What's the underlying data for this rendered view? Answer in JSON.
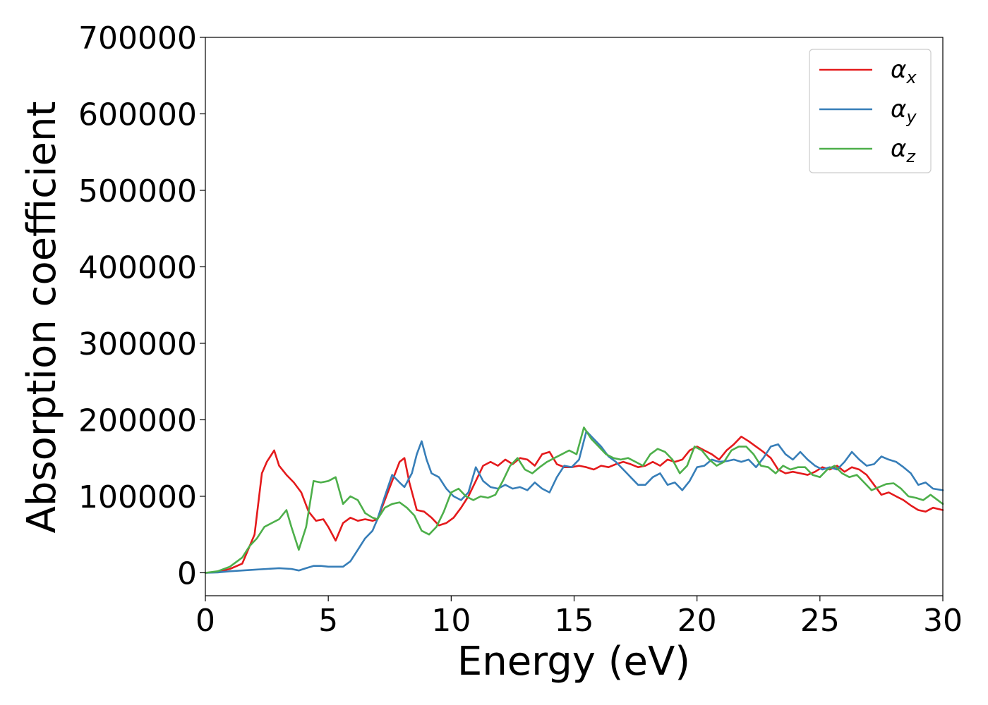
{
  "chart_data": {
    "type": "line",
    "title": "",
    "xlabel": "Energy (eV)",
    "ylabel": "Absorption coefficient",
    "xlim": [
      0,
      30
    ],
    "ylim": [
      -30000,
      700000
    ],
    "xticks": [
      0,
      5,
      10,
      15,
      20,
      25,
      30
    ],
    "xtick_labels": [
      "0",
      "5",
      "10",
      "15",
      "20",
      "25",
      "30"
    ],
    "yticks": [
      0,
      100000,
      200000,
      300000,
      400000,
      500000,
      600000,
      700000
    ],
    "ytick_labels": [
      "0",
      "100000",
      "200000",
      "300000",
      "400000",
      "500000",
      "600000",
      "700000"
    ],
    "grid": false,
    "legend_position": "top-right",
    "series": [
      {
        "name": "α_x",
        "name_base": "α",
        "name_sub": "x",
        "color": "#e41a1c",
        "x": [
          0,
          0.5,
          1,
          1.5,
          2,
          2.3,
          2.5,
          2.8,
          3,
          3.3,
          3.6,
          3.9,
          4.2,
          4.5,
          4.8,
          5,
          5.3,
          5.6,
          5.9,
          6.2,
          6.5,
          6.8,
          7,
          7.3,
          7.6,
          7.9,
          8.1,
          8.3,
          8.6,
          8.9,
          9.2,
          9.5,
          9.8,
          10.1,
          10.4,
          10.7,
          11,
          11.3,
          11.6,
          11.9,
          12.2,
          12.5,
          12.8,
          13.1,
          13.4,
          13.7,
          14,
          14.3,
          14.6,
          14.9,
          15.2,
          15.5,
          15.8,
          16.1,
          16.4,
          16.7,
          17,
          17.3,
          17.6,
          17.9,
          18.2,
          18.5,
          18.8,
          19.1,
          19.4,
          19.7,
          20,
          20.3,
          20.6,
          20.9,
          21.2,
          21.5,
          21.8,
          22.1,
          22.4,
          22.7,
          23,
          23.3,
          23.6,
          23.9,
          24.2,
          24.5,
          24.8,
          25.1,
          25.4,
          25.7,
          26,
          26.3,
          26.6,
          26.9,
          27.2,
          27.5,
          27.8,
          28.1,
          28.4,
          28.7,
          29,
          29.3,
          29.6,
          30
        ],
        "y": [
          0,
          1000,
          5000,
          12000,
          50000,
          130000,
          145000,
          160000,
          140000,
          128000,
          118000,
          105000,
          80000,
          68000,
          70000,
          60000,
          42000,
          65000,
          72000,
          68000,
          70000,
          68000,
          70000,
          95000,
          120000,
          145000,
          150000,
          118000,
          82000,
          80000,
          72000,
          62000,
          65000,
          72000,
          85000,
          100000,
          120000,
          140000,
          145000,
          140000,
          148000,
          142000,
          150000,
          148000,
          140000,
          155000,
          158000,
          142000,
          138000,
          138000,
          140000,
          138000,
          135000,
          140000,
          138000,
          142000,
          145000,
          142000,
          138000,
          140000,
          145000,
          140000,
          148000,
          145000,
          148000,
          160000,
          165000,
          160000,
          155000,
          148000,
          160000,
          168000,
          178000,
          172000,
          165000,
          158000,
          150000,
          135000,
          130000,
          132000,
          130000,
          128000,
          132000,
          138000,
          135000,
          140000,
          132000,
          138000,
          135000,
          128000,
          115000,
          102000,
          105000,
          100000,
          95000,
          88000,
          82000,
          80000,
          85000,
          82000
        ]
      },
      {
        "name": "α_y",
        "name_base": "α",
        "name_sub": "y",
        "color": "#377eb8",
        "x": [
          0,
          0.5,
          1,
          1.5,
          2,
          2.5,
          3,
          3.5,
          3.8,
          4.1,
          4.4,
          4.7,
          5,
          5.3,
          5.6,
          5.9,
          6.2,
          6.5,
          6.8,
          7,
          7.3,
          7.6,
          7.9,
          8.1,
          8.4,
          8.6,
          8.8,
          9,
          9.2,
          9.5,
          9.8,
          10.1,
          10.4,
          10.7,
          11,
          11.3,
          11.6,
          11.9,
          12.2,
          12.5,
          12.8,
          13.1,
          13.4,
          13.7,
          14,
          14.3,
          14.6,
          14.9,
          15.2,
          15.5,
          15.8,
          16.1,
          16.4,
          16.7,
          17,
          17.3,
          17.6,
          17.9,
          18.2,
          18.5,
          18.8,
          19.1,
          19.4,
          19.7,
          20,
          20.3,
          20.6,
          20.9,
          21.2,
          21.5,
          21.8,
          22.1,
          22.4,
          22.7,
          23,
          23.3,
          23.6,
          23.9,
          24.2,
          24.5,
          24.8,
          25.1,
          25.4,
          25.7,
          26,
          26.3,
          26.6,
          26.9,
          27.2,
          27.5,
          27.8,
          28.1,
          28.4,
          28.7,
          29,
          29.3,
          29.6,
          30
        ],
        "y": [
          0,
          500,
          2000,
          3000,
          4000,
          5000,
          6000,
          5000,
          3000,
          6000,
          9000,
          9000,
          8000,
          8000,
          8000,
          15000,
          30000,
          45000,
          55000,
          70000,
          100000,
          128000,
          118000,
          112000,
          130000,
          155000,
          172000,
          148000,
          130000,
          125000,
          110000,
          100000,
          95000,
          105000,
          138000,
          120000,
          112000,
          110000,
          115000,
          110000,
          112000,
          108000,
          118000,
          110000,
          105000,
          125000,
          140000,
          138000,
          148000,
          185000,
          175000,
          165000,
          152000,
          145000,
          135000,
          125000,
          115000,
          115000,
          125000,
          130000,
          115000,
          118000,
          108000,
          120000,
          138000,
          140000,
          148000,
          145000,
          146000,
          148000,
          145000,
          148000,
          138000,
          150000,
          165000,
          168000,
          155000,
          148000,
          158000,
          148000,
          140000,
          135000,
          138000,
          135000,
          145000,
          158000,
          148000,
          140000,
          142000,
          152000,
          148000,
          145000,
          138000,
          130000,
          115000,
          118000,
          110000,
          108000
        ]
      },
      {
        "name": "α_z",
        "name_base": "α",
        "name_sub": "z",
        "color": "#4daf4a",
        "x": [
          0,
          0.5,
          1,
          1.5,
          1.8,
          2.1,
          2.4,
          2.7,
          3,
          3.3,
          3.5,
          3.8,
          4.1,
          4.4,
          4.7,
          5,
          5.3,
          5.6,
          5.9,
          6.2,
          6.5,
          6.8,
          7,
          7.3,
          7.6,
          7.9,
          8.2,
          8.5,
          8.8,
          9.1,
          9.4,
          9.7,
          10,
          10.3,
          10.6,
          10.9,
          11.2,
          11.5,
          11.8,
          12.1,
          12.4,
          12.7,
          13,
          13.3,
          13.6,
          13.9,
          14.2,
          14.5,
          14.8,
          15.1,
          15.4,
          15.7,
          16,
          16.3,
          16.6,
          16.9,
          17.2,
          17.5,
          17.8,
          18.1,
          18.4,
          18.7,
          19,
          19.3,
          19.6,
          19.9,
          20.2,
          20.5,
          20.8,
          21.1,
          21.4,
          21.7,
          22,
          22.3,
          22.6,
          22.9,
          23.2,
          23.5,
          23.8,
          24.1,
          24.4,
          24.7,
          25,
          25.3,
          25.6,
          25.9,
          26.2,
          26.5,
          26.8,
          27.1,
          27.4,
          27.7,
          28,
          28.3,
          28.6,
          28.9,
          29.2,
          29.5,
          30
        ],
        "y": [
          0,
          2000,
          8000,
          20000,
          35000,
          45000,
          60000,
          65000,
          70000,
          82000,
          60000,
          30000,
          60000,
          120000,
          118000,
          120000,
          125000,
          90000,
          100000,
          95000,
          78000,
          72000,
          70000,
          85000,
          90000,
          92000,
          85000,
          75000,
          55000,
          50000,
          60000,
          80000,
          105000,
          110000,
          100000,
          95000,
          100000,
          98000,
          102000,
          120000,
          140000,
          150000,
          135000,
          130000,
          138000,
          145000,
          150000,
          155000,
          160000,
          155000,
          190000,
          175000,
          165000,
          155000,
          150000,
          148000,
          150000,
          145000,
          140000,
          155000,
          162000,
          158000,
          148000,
          130000,
          140000,
          165000,
          160000,
          148000,
          140000,
          145000,
          160000,
          165000,
          165000,
          155000,
          140000,
          138000,
          130000,
          140000,
          135000,
          138000,
          138000,
          128000,
          125000,
          135000,
          140000,
          130000,
          125000,
          128000,
          118000,
          108000,
          112000,
          116000,
          117000,
          110000,
          100000,
          98000,
          95000,
          102000,
          90000
        ]
      }
    ]
  }
}
